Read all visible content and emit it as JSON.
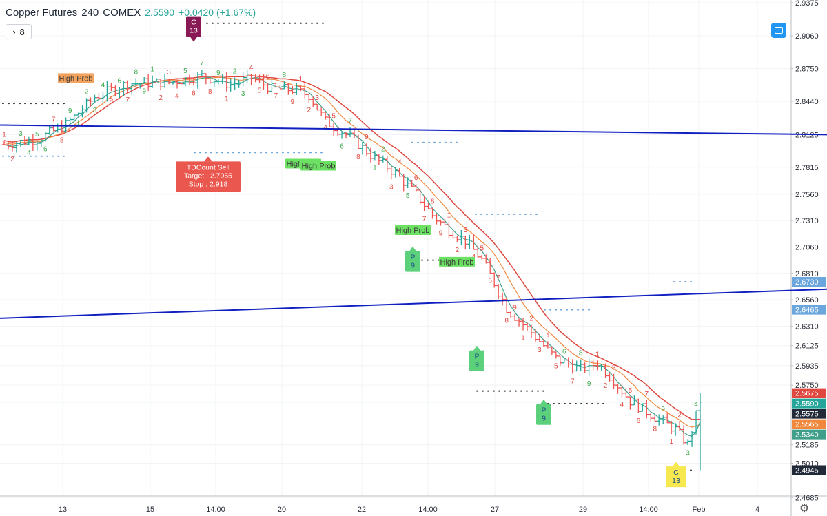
{
  "header": {
    "symbol": "Copper Futures",
    "interval": "240",
    "exchange": "COMEX",
    "last": "2.5590",
    "change": "+0.0420 (+1.67%)",
    "indicator_count": "8"
  },
  "chart_data": {
    "type": "candlestick-ohlc-bars",
    "y_axis": {
      "min": 2.47,
      "max": 2.94,
      "ticks": [
        2.9375,
        2.906,
        2.875,
        2.844,
        2.8125,
        2.7815,
        2.756,
        2.731,
        2.706,
        2.681,
        2.656,
        2.631,
        2.6125,
        2.5935,
        2.575,
        2.5185,
        2.501,
        2.4685
      ],
      "tick_labels": [
        "2.9375",
        "2.9060",
        "2.8750",
        "2.8440",
        "2.8125",
        "2.7815",
        "2.7560",
        "2.7310",
        "2.7060",
        "2.6810",
        "2.6560",
        "2.6310",
        "2.6125",
        "2.5935",
        "2.5750",
        "2.5185",
        "2.5010",
        "2.4685"
      ]
    },
    "x_axis": {
      "labels": [
        {
          "label": "13",
          "x": 91
        },
        {
          "label": "15",
          "x": 218
        },
        {
          "label": "14:00",
          "x": 313
        },
        {
          "label": "20",
          "x": 409
        },
        {
          "label": "22",
          "x": 525
        },
        {
          "label": "14:00",
          "x": 621
        },
        {
          "label": "27",
          "x": 718
        },
        {
          "label": "29",
          "x": 846
        },
        {
          "label": "14:00",
          "x": 941
        },
        {
          "label": "Feb",
          "x": 1014
        },
        {
          "label": "4",
          "x": 1099
        }
      ]
    },
    "price_labels": [
      {
        "value": "2.6730",
        "color": "#6ba6dc",
        "price": 2.673
      },
      {
        "value": "2.6465",
        "color": "#6ba6dc",
        "price": 2.6465
      },
      {
        "value": "2.5675",
        "color": "#e0483f",
        "price": 2.5675
      },
      {
        "value": "2.5590",
        "color": "#26a69a",
        "price": 2.559
      },
      {
        "value": "2.5575",
        "color": "#222a3a",
        "price": 2.5575
      },
      {
        "value": "2.5565",
        "color": "#f0883e",
        "price": 2.5565
      },
      {
        "value": "2.5340",
        "color": "#3f9f8a",
        "price": 2.534
      },
      {
        "value": "2.4945",
        "color": "#222a3a",
        "price": 2.4945
      }
    ],
    "annotations": [
      {
        "text": "C\n13",
        "kind": "down-marker",
        "color": "#8a1a55",
        "price": 2.905,
        "x": 281
      },
      {
        "text": "High Prob",
        "kind": "label",
        "color": "#f3a35d",
        "price": 2.866,
        "x": 110
      },
      {
        "text": "TDCount Sell\nTarget : 2.7955\nStop : 2.918",
        "kind": "tooltip",
        "color": "#e9574e",
        "price": 2.787,
        "x": 302
      },
      {
        "text": "High Prob",
        "kind": "label",
        "color": "#6ce063",
        "price": 2.785,
        "x": 440
      },
      {
        "text": "High Prob",
        "kind": "label",
        "color": "#6ce063",
        "price": 2.783,
        "x": 462
      },
      {
        "text": "High Prob",
        "kind": "label",
        "color": "#6ce063",
        "price": 2.722,
        "x": 599
      },
      {
        "text": "High Prob",
        "kind": "label",
        "color": "#6ce063",
        "price": 2.692,
        "x": 663
      },
      {
        "text": "P\n9",
        "kind": "up-marker",
        "color": "#5cd07a",
        "price": 2.702,
        "x": 599
      },
      {
        "text": "P\n9",
        "kind": "up-marker",
        "color": "#5cd07a",
        "price": 2.608,
        "x": 692
      },
      {
        "text": "P\n9",
        "kind": "up-marker",
        "color": "#5cd07a",
        "price": 2.557,
        "x": 789
      },
      {
        "text": "C\n13",
        "kind": "up-marker",
        "color": "#f7e84f",
        "price": 2.498,
        "x": 981
      }
    ],
    "series": [
      {
        "name": "trend_line_upper",
        "type": "line",
        "color": "#1020c0",
        "points": [
          [
            0,
            2.8215
          ],
          [
            1200,
            2.8125
          ]
        ]
      },
      {
        "name": "trend_line_lower",
        "type": "line",
        "color": "#1020c0",
        "points": [
          [
            0,
            2.6385
          ],
          [
            1200,
            2.666
          ]
        ]
      }
    ]
  }
}
